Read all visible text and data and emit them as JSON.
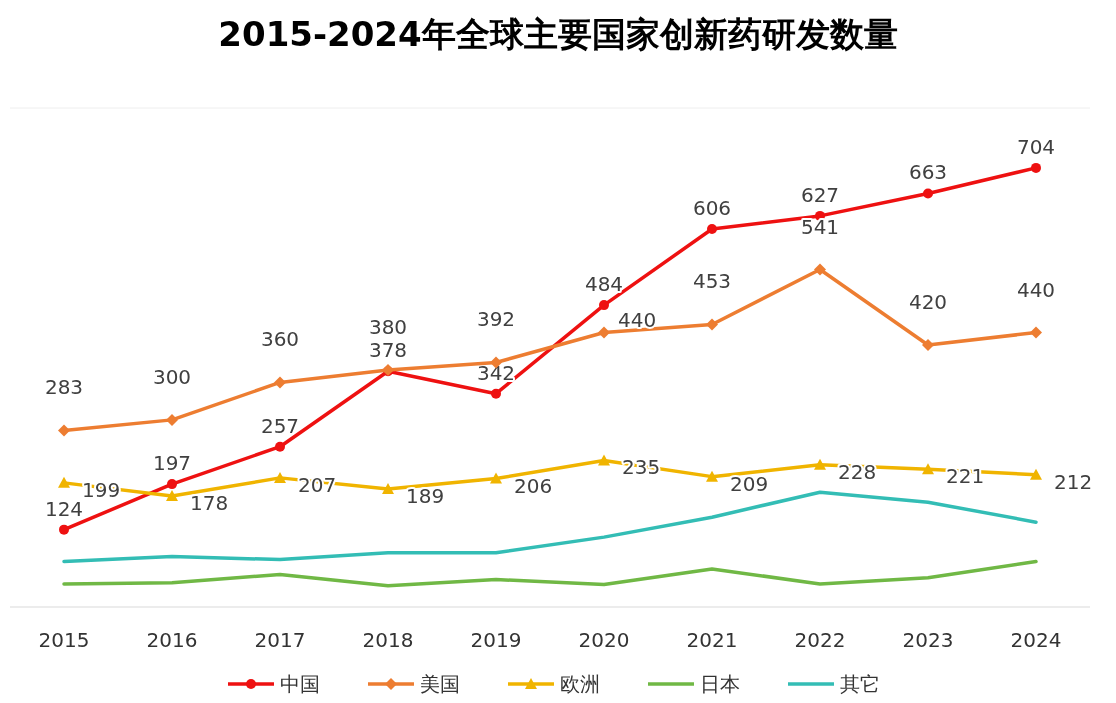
{
  "chart_data": {
    "type": "line",
    "title": "2015-2024年全球主要国家创新药研发数量",
    "categories": [
      "2015",
      "2016",
      "2017",
      "2018",
      "2019",
      "2020",
      "2021",
      "2022",
      "2023",
      "2024"
    ],
    "ylim": [
      0,
      800
    ],
    "tick_labels": "x",
    "legend": "bottom",
    "series": [
      {
        "name": "中国",
        "color": "#ee1111",
        "marker": "circle",
        "values": [
          124,
          197,
          257,
          378,
          342,
          484,
          606,
          627,
          663,
          704
        ],
        "value_labels": [
          "124",
          "197",
          "257",
          "378",
          "342",
          "484",
          "606",
          "627",
          "663",
          "704"
        ]
      },
      {
        "name": "美国",
        "color": "#ed7d31",
        "marker": "diamond",
        "values": [
          283,
          300,
          360,
          380,
          392,
          440,
          453,
          541,
          420,
          440
        ],
        "value_labels": [
          "283",
          "300",
          "360",
          "380",
          "392",
          "440",
          "453",
          "541",
          "420",
          "440"
        ]
      },
      {
        "name": "欧洲",
        "color": "#f0b400",
        "marker": "triangle",
        "values": [
          199,
          178,
          207,
          189,
          206,
          235,
          209,
          228,
          221,
          212
        ],
        "value_labels": [
          "199",
          "178",
          "207",
          "189",
          "206",
          "235",
          "209",
          "228",
          "221",
          "212"
        ]
      },
      {
        "name": "日本",
        "color": "#70b845",
        "marker": "none",
        "values": [
          37,
          39,
          52,
          34,
          44,
          36,
          61,
          37,
          47,
          73
        ]
      },
      {
        "name": "其它",
        "color": "#33bdb5",
        "marker": "none",
        "values": [
          73,
          81,
          76,
          87,
          87,
          112,
          144,
          184,
          168,
          136
        ]
      }
    ]
  }
}
